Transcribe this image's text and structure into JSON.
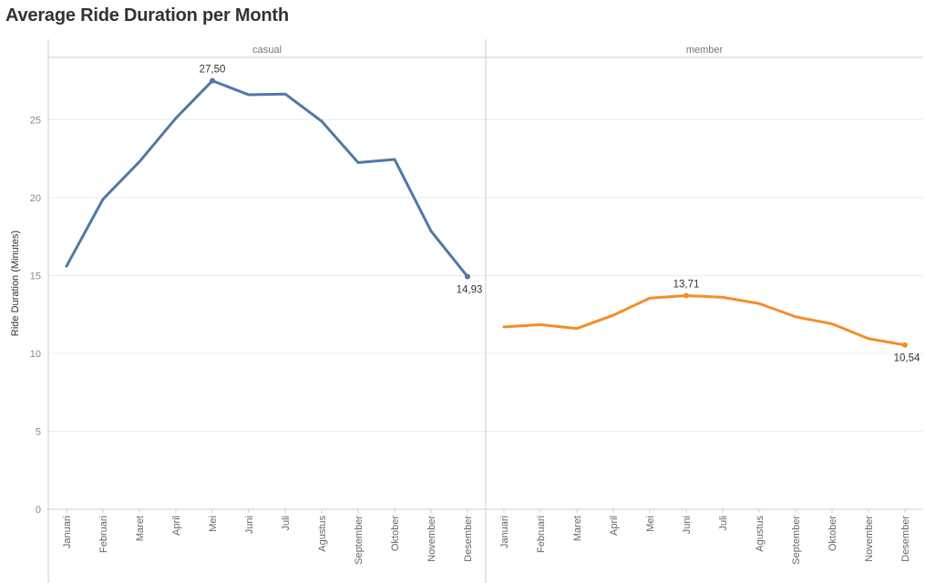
{
  "title": "Average Ride Duration per Month",
  "chart_data": {
    "type": "line",
    "title": "Average Ride Duration per Month",
    "ylabel": "Ride Duration (Minutes)",
    "xlabel": "",
    "ylim": [
      0,
      29
    ],
    "yticks": [
      "0",
      "5",
      "10",
      "15",
      "20",
      "25"
    ],
    "grid": true,
    "categories": [
      "Januari",
      "Februari",
      "Maret",
      "April",
      "Mei",
      "Juni",
      "Juli",
      "Agustus",
      "September",
      "Oktober",
      "November",
      "Desember"
    ],
    "panels": [
      {
        "name": "casual",
        "color": "#4e79a7",
        "values": [
          15.6,
          19.9,
          22.3,
          25.1,
          27.5,
          26.6,
          26.65,
          24.9,
          22.25,
          22.45,
          17.85,
          14.93
        ],
        "labels": [
          {
            "index": 4,
            "text": "27,50",
            "pos": "above"
          },
          {
            "index": 11,
            "text": "14,93",
            "pos": "below"
          }
        ]
      },
      {
        "name": "member",
        "color": "#f28e2b",
        "values": [
          11.7,
          11.85,
          11.6,
          12.45,
          13.55,
          13.71,
          13.6,
          13.2,
          12.35,
          11.9,
          10.95,
          10.54
        ],
        "labels": [
          {
            "index": 5,
            "text": "13,71",
            "pos": "above"
          },
          {
            "index": 11,
            "text": "10,54",
            "pos": "below"
          }
        ]
      }
    ]
  }
}
